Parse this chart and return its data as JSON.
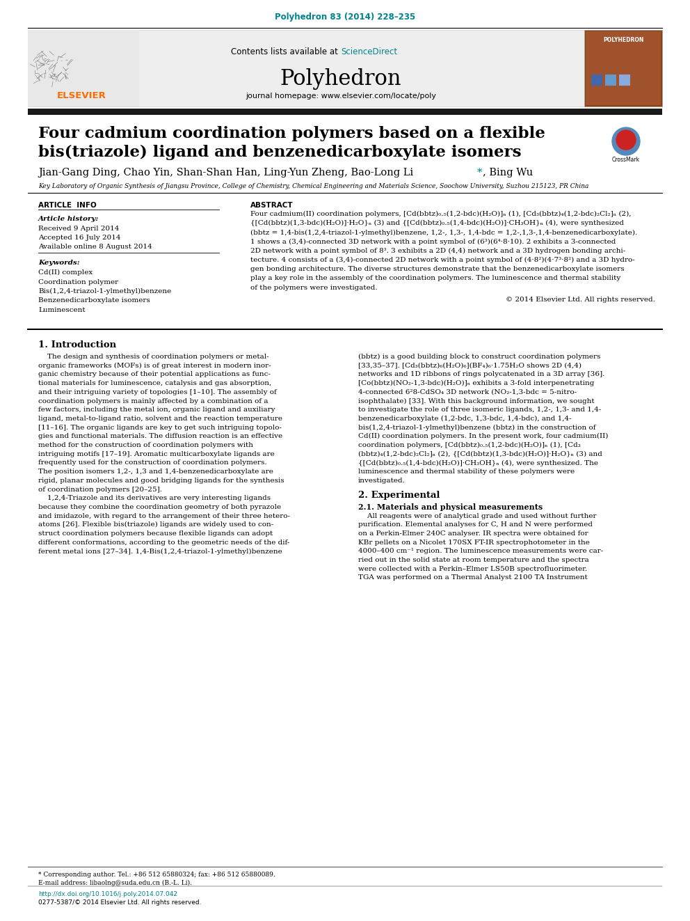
{
  "journal_ref": "Polyhedron 83 (2014) 228–235",
  "journal_ref_color": "#00838F",
  "contents_text": "Contents lists available at ",
  "sciencedirect_text": "ScienceDirect",
  "sciencedirect_color": "#00838F",
  "journal_name": "Polyhedron",
  "journal_homepage": "journal homepage: www.elsevier.com/locate/poly",
  "title_line1": "Four cadmium coordination polymers based on a flexible",
  "title_line2": "bis(triazole) ligand and benzenedicarboxylate isomers",
  "authors_pre": "Jian-Gang Ding, Chao Yin, Shan-Shan Han, Ling-Yun Zheng, Bao-Long Li",
  "authors_post": ", Bing Wu",
  "affiliation": "Key Laboratory of Organic Synthesis of Jiangsu Province, College of Chemistry, Chemical Engineering and Materials Science, Soochow University, Suzhou 215123, PR China",
  "article_info_header": "ARTICLE  INFO",
  "abstract_header": "ABSTRACT",
  "article_history_label": "Article history:",
  "received": "Received 9 April 2014",
  "accepted": "Accepted 16 July 2014",
  "available": "Available online 8 August 2014",
  "keywords_label": "Keywords:",
  "keywords": [
    "Cd(II) complex",
    "Coordination polymer",
    "Bis(1,2,4-triazol-1-ylmethyl)benzene",
    "Benzenedicarboxylate isomers",
    "Luminescent"
  ],
  "copyright": "© 2014 Elsevier Ltd. All rights reserved.",
  "intro_header": "1. Introduction",
  "section2_header": "2. Experimental",
  "section21_header": "2.1. Materials and physical measurements",
  "footer_star": "* Corresponding author. Tel.: +86 512 65880324; fax: +86 512 65880089.",
  "footer_email": "E-mail address: libaolng@suda.edu.cn (B.-L. Li).",
  "footer_doi": "http://dx.doi.org/10.1016/j.poly.2014.07.042",
  "footer_issn": "0277-5387/© 2014 Elsevier Ltd. All rights reserved.",
  "link_color": "#00838F",
  "bg_color": "#ffffff",
  "text_color": "#000000",
  "dark_bar_color": "#1a1a1a",
  "elsevier_orange": "#FF6B00",
  "abstract_lines": [
    "Four cadmium(II) coordination polymers, [Cd(bbtz)₀.₅(1,2-bdc)(H₂O)]ₙ (1), [Cd₃(bbtz)₄(1,2-bdc)₂Cl₂]ₙ (2),",
    "{[Cd(bbtz)(1,3-bdc)(H₂O)]·H₂O}ₙ (3) and {[Cd(bbtz)₀.₅(1,4-bdc)(H₂O)]·CH₃OH}ₙ (4), were synthesized",
    "(bbtz = 1,4-bis(1,2,4-triazol-1-ylmethyl)benzene, 1,2-, 1,3-, 1,4-bdc = 1,2-,1,3-,1,4-benzenedicarboxylate).",
    "1 shows a (3,4)-connected 3D network with a point symbol of (6³)(6⁴·8·10). 2 exhibits a 3-connected",
    "2D network with a point symbol of 8³. 3 exhibits a 2D (4,4) network and a 3D hydrogen bonding archi-",
    "tecture. 4 consists of a (3,4)-connected 2D network with a point symbol of (4·8²)(4·7³·8²) and a 3D hydro-",
    "gen bonding architecture. The diverse structures demonstrate that the benzenedicarboxylate isomers",
    "play a key role in the assembly of the coordination polymers. The luminescence and thermal stability",
    "of the polymers were investigated."
  ],
  "intro_col1_lines": [
    "    The design and synthesis of coordination polymers or metal-",
    "organic frameworks (MOFs) is of great interest in modern inor-",
    "ganic chemistry because of their potential applications as func-",
    "tional materials for luminescence, catalysis and gas absorption,",
    "and their intriguing variety of topologies [1–10]. The assembly of",
    "coordination polymers is mainly affected by a combination of a",
    "few factors, including the metal ion, organic ligand and auxiliary",
    "ligand, metal-to-ligand ratio, solvent and the reaction temperature",
    "[11–16]. The organic ligands are key to get such intriguing topolo-",
    "gies and functional materials. The diffusion reaction is an effective",
    "method for the construction of coordination polymers with",
    "intriguing motifs [17–19]. Aromatic multicarboxylate ligands are",
    "frequently used for the construction of coordination polymers.",
    "The position isomers 1,2-, 1,3 and 1,4-benzenedicarboxylate are",
    "rigid, planar molecules and good bridging ligands for the synthesis",
    "of coordination polymers [20–25].",
    "    1,2,4-Triazole and its derivatives are very interesting ligands",
    "because they combine the coordination geometry of both pyrazole",
    "and imidazole, with regard to the arrangement of their three hetero-",
    "atoms [26]. Flexible bis(triazole) ligands are widely used to con-",
    "struct coordination polymers because flexible ligands can adopt",
    "different conformations, according to the geometric needs of the dif-",
    "ferent metal ions [27–34]. 1,4-Bis(1,2,4-triazol-1-ylmethyl)benzene"
  ],
  "intro_col2_lines": [
    "(bbtz) is a good building block to construct coordination polymers",
    "[33,35–37]. [Cd₃(bbtz)₆(H₂O)₆](BF₄)₆·1.75H₂O shows 2D (4,4)",
    "networks and 1D ribbons of rings polycatenated in a 3D array [36].",
    "[Co(bbtz)(NO₂-1,3-bdc)(H₂O)]ₙ exhibits a 3-fold interpenetrating",
    "4-connected 6²8-CdSO₄ 3D network (NO₂-1,3-bdc = 5-nitro-",
    "isophthalate) [33]. With this background information, we sought",
    "to investigate the role of three isomeric ligands, 1,2-, 1,3- and 1,4-",
    "benzenedicarboxylate (1,2-bdc, 1,3-bdc, 1,4-bdc), and 1,4-",
    "bis(1,2,4-triazol-1-ylmethyl)benzene (bbtz) in the construction of",
    "Cd(II) coordination polymers. In the present work, four cadmium(II)",
    "coordination polymers, [Cd(bbtz)₀.₅(1,2-bdc)(H₂O)]ₙ (1), [Cd₃",
    "(bbtz)₄(1,2-bdc)₂Cl₂]ₙ (2), {[Cd(bbtz)(1,3-bdc)(H₂O)]·H₂O}ₙ (3) and",
    "{[Cd(bbtz)₀.₅(1,4-bdc)(H₂O)]·CH₃OH}ₙ (4), were synthesized. The",
    "luminescence and thermal stability of these polymers were",
    "investigated."
  ],
  "sec21_lines": [
    "    All reagents were of analytical grade and used without further",
    "purification. Elemental analyses for C, H and N were performed",
    "on a Perkin-Elmer 240C analyser. IR spectra were obtained for",
    "KBr pellets on a Nicolet 170SX FT-IR spectrophotometer in the",
    "4000–400 cm⁻¹ region. The luminescence measurements were car-",
    "ried out in the solid state at room temperature and the spectra",
    "were collected with a Perkin–Elmer LS50B spectrofluorimeter.",
    "TGA was performed on a Thermal Analyst 2100 TA Instrument"
  ]
}
